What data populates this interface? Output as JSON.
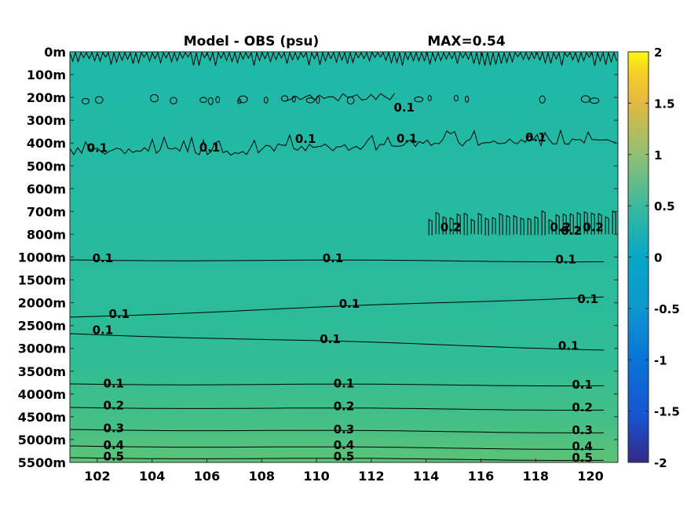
{
  "chart_data": {
    "type": "heatmap",
    "title": "Model - OBS (psu)",
    "subtitle": "MAX=0.54",
    "y_ticks": [
      "0m",
      "100m",
      "200m",
      "300m",
      "400m",
      "500m",
      "600m",
      "700m",
      "800m",
      "1000m",
      "1500m",
      "2000m",
      "2500m",
      "3000m",
      "3500m",
      "4000m",
      "4500m",
      "5000m",
      "5500m"
    ],
    "x_ticks": [
      102,
      104,
      106,
      108,
      110,
      112,
      114,
      116,
      118,
      120
    ],
    "xlim": [
      101,
      121
    ],
    "colorbar": {
      "ticks": [
        2,
        1.5,
        1,
        0.5,
        0,
        -0.5,
        -1,
        -1.5,
        -2
      ],
      "clim": [
        -2,
        2
      ],
      "colormap": "parula"
    },
    "contour_labels": [
      {
        "text": "0.1",
        "x": 102.0,
        "y": 4.32
      },
      {
        "text": "0.1",
        "x": 106.1,
        "y": 4.3
      },
      {
        "text": "0.1",
        "x": 109.6,
        "y": 3.93
      },
      {
        "text": "0.1",
        "x": 113.2,
        "y": 2.55
      },
      {
        "text": "0.1",
        "x": 113.3,
        "y": 3.9
      },
      {
        "text": "0.1",
        "x": 118.0,
        "y": 3.85
      },
      {
        "text": "0.2",
        "x": 114.9,
        "y": 7.8
      },
      {
        "text": "0.2",
        "x": 118.9,
        "y": 7.8
      },
      {
        "text": "0.2",
        "x": 119.3,
        "y": 7.95
      },
      {
        "text": "0.2",
        "x": 120.1,
        "y": 7.8
      },
      {
        "text": "0.1",
        "x": 102.2,
        "y": 9.15
      },
      {
        "text": "0.1",
        "x": 110.6,
        "y": 9.15
      },
      {
        "text": "0.1",
        "x": 119.1,
        "y": 9.2
      },
      {
        "text": "0.1",
        "x": 102.8,
        "y": 11.6
      },
      {
        "text": "0.1",
        "x": 111.2,
        "y": 11.15
      },
      {
        "text": "0.1",
        "x": 119.9,
        "y": 10.95
      },
      {
        "text": "0.1",
        "x": 102.2,
        "y": 12.3
      },
      {
        "text": "0.1",
        "x": 110.5,
        "y": 12.7
      },
      {
        "text": "0.1",
        "x": 119.2,
        "y": 13.0
      },
      {
        "text": "0.1",
        "x": 102.6,
        "y": 14.65
      },
      {
        "text": "0.1",
        "x": 111.0,
        "y": 14.65
      },
      {
        "text": "0.1",
        "x": 119.7,
        "y": 14.7
      },
      {
        "text": "0.2",
        "x": 102.6,
        "y": 15.6
      },
      {
        "text": "0.2",
        "x": 111.0,
        "y": 15.65
      },
      {
        "text": "0.2",
        "x": 119.7,
        "y": 15.7
      },
      {
        "text": "0.3",
        "x": 102.6,
        "y": 16.6
      },
      {
        "text": "0.3",
        "x": 111.0,
        "y": 16.65
      },
      {
        "text": "0.3",
        "x": 119.7,
        "y": 16.7
      },
      {
        "text": "0.4",
        "x": 102.6,
        "y": 17.35
      },
      {
        "text": "0.4",
        "x": 111.0,
        "y": 17.35
      },
      {
        "text": "0.4",
        "x": 119.7,
        "y": 17.4
      },
      {
        "text": "0.5",
        "x": 102.6,
        "y": 17.85
      },
      {
        "text": "0.5",
        "x": 111.0,
        "y": 17.85
      },
      {
        "text": "0.5",
        "x": 119.7,
        "y": 17.9
      }
    ]
  }
}
